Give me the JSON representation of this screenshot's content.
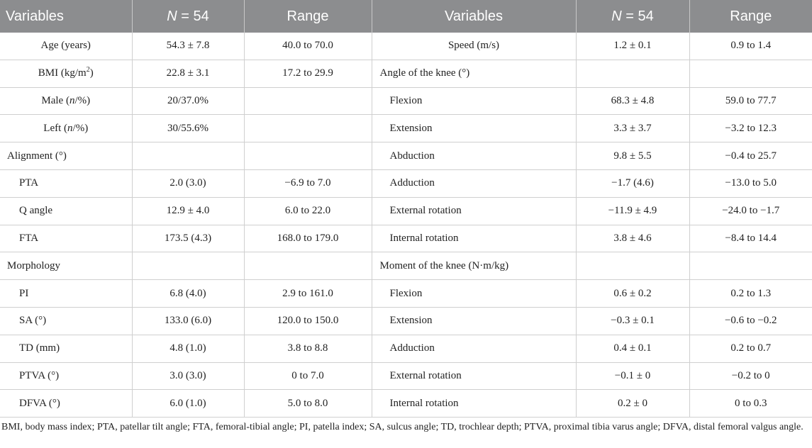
{
  "header": {
    "variables": "Variables",
    "n_symbol": "N",
    "n_rest": " = 54",
    "range": "Range"
  },
  "rows": [
    {
      "l_label": "Age (years)",
      "l_value": "54.3 ± 7.8",
      "l_range": "40.0 to 70.0",
      "r_label": "Speed (m/s)",
      "r_value": "1.2 ± 0.1",
      "r_range": "0.9 to 1.4"
    },
    {
      "l_label": "BMI (kg/m",
      "l_label_sup": "2",
      "l_label_end": ")",
      "l_value": "22.8 ± 3.1",
      "l_range": "17.2 to 29.9",
      "r_label": "Angle of the knee (°)",
      "r_value": "",
      "r_range": ""
    },
    {
      "l_label": "Male (",
      "l_label_em": "n",
      "l_label_end": "/%)",
      "l_value": "20/37.0%",
      "l_range": "",
      "r_label": "Flexion",
      "r_value": "68.3 ± 4.8",
      "r_range": "59.0 to 77.7"
    },
    {
      "l_label": "Left (",
      "l_label_em": "n",
      "l_label_end": "/%)",
      "l_value": "30/55.6%",
      "l_range": "",
      "r_label": "Extension",
      "r_value": "3.3 ± 3.7",
      "r_range": "−3.2 to 12.3"
    },
    {
      "l_label": "Alignment (°)",
      "l_value": "",
      "l_range": "",
      "r_label": "Abduction",
      "r_value": "9.8 ± 5.5",
      "r_range": "−0.4 to 25.7"
    },
    {
      "l_label": "PTA",
      "l_value": "2.0 (3.0)",
      "l_range": "−6.9 to 7.0",
      "r_label": "Adduction",
      "r_value": "−1.7 (4.6)",
      "r_range": "−13.0 to 5.0"
    },
    {
      "l_label": "Q angle",
      "l_value": "12.9 ± 4.0",
      "l_range": "6.0 to 22.0",
      "r_label": "External rotation",
      "r_value": "−11.9 ± 4.9",
      "r_range": "−24.0 to −1.7"
    },
    {
      "l_label": "FTA",
      "l_value": "173.5 (4.3)",
      "l_range": "168.0 to 179.0",
      "r_label": "Internal rotation",
      "r_value": "3.8 ± 4.6",
      "r_range": "−8.4 to 14.4"
    },
    {
      "l_label": "Morphology",
      "l_value": "",
      "l_range": "",
      "r_label": "Moment of the knee (N·m/kg)",
      "r_value": "",
      "r_range": ""
    },
    {
      "l_label": "PI",
      "l_value": "6.8 (4.0)",
      "l_range": "2.9 to 161.0",
      "r_label": "Flexion",
      "r_value": "0.6 ± 0.2",
      "r_range": "0.2 to 1.3"
    },
    {
      "l_label": "SA (°)",
      "l_value": "133.0 (6.0)",
      "l_range": "120.0 to 150.0",
      "r_label": "Extension",
      "r_value": "−0.3 ± 0.1",
      "r_range": "−0.6 to −0.2"
    },
    {
      "l_label": "TD (mm)",
      "l_value": "4.8 (1.0)",
      "l_range": "3.8 to 8.8",
      "r_label": "Adduction",
      "r_value": "0.4 ± 0.1",
      "r_range": "0.2 to 0.7"
    },
    {
      "l_label": "PTVA (°)",
      "l_value": "3.0 (3.0)",
      "l_range": "0 to 7.0",
      "r_label": "External rotation",
      "r_value": "−0.1 ± 0",
      "r_range": "−0.2 to 0"
    },
    {
      "l_label": "DFVA (°)",
      "l_value": "6.0 (1.0)",
      "l_range": "5.0 to 8.0",
      "r_label": "Internal rotation",
      "r_value": "0.2 ± 0",
      "r_range": "0 to 0.3"
    }
  ],
  "footnote": "BMI, body mass index; PTA, patellar tilt angle; FTA, femoral-tibial angle; PI, patella index; SA, sulcus angle; TD, trochlear depth; PTVA, proximal tibia varus angle; DFVA, distal femoral valgus angle."
}
